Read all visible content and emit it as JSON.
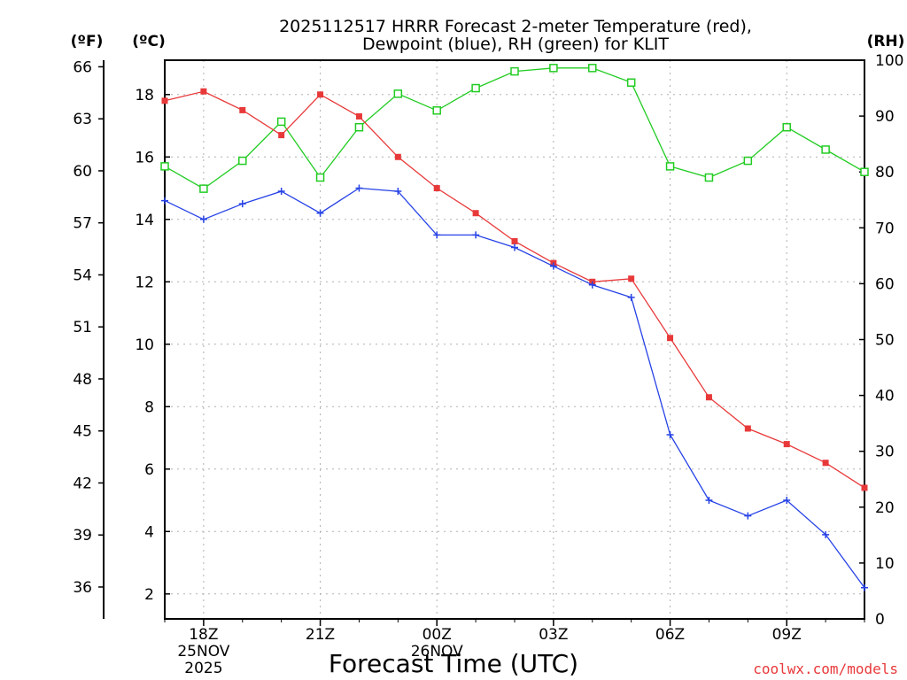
{
  "chart_data": {
    "type": "line",
    "title_line1": "2025112517 HRRR Forecast 2-meter Temperature (red),",
    "title_line2": "Dewpoint (blue), RH (green) for KLIT",
    "xlabel": "Forecast Time (UTC)",
    "credit": "coolwx.com/models",
    "unit_f": "(ºF)",
    "unit_c": "(ºC)",
    "unit_rh": "(RH)",
    "colors": {
      "temperature": "#e8393a",
      "dewpoint": "#2642e6",
      "rh": "#22cc22",
      "grid": "#b0b0b0"
    },
    "x_hours": [
      17,
      18,
      19,
      20,
      21,
      22,
      23,
      24,
      25,
      26,
      27,
      28,
      29,
      30,
      31,
      32,
      33,
      34,
      35
    ],
    "x_ticks": [
      {
        "hour": 18,
        "label": "18Z",
        "date": "25NOV",
        "year": "2025"
      },
      {
        "hour": 21,
        "label": "21Z"
      },
      {
        "hour": 24,
        "label": "00Z",
        "date": "26NOV"
      },
      {
        "hour": 27,
        "label": "03Z"
      },
      {
        "hour": 30,
        "label": "06Z"
      },
      {
        "hour": 33,
        "label": "09Z"
      }
    ],
    "xlim": [
      17,
      35
    ],
    "ylim_c": [
      1.2,
      19.1
    ],
    "ylim_rh": [
      0,
      100
    ],
    "yticks_c": [
      2,
      4,
      6,
      8,
      10,
      12,
      14,
      16,
      18
    ],
    "yticks_f": [
      36,
      39,
      42,
      45,
      48,
      51,
      54,
      57,
      60,
      63,
      66
    ],
    "yticks_rh": [
      0,
      10,
      20,
      30,
      40,
      50,
      60,
      70,
      80,
      90,
      100
    ],
    "series": [
      {
        "name": "Temperature",
        "unit": "C",
        "marker": "filled-square",
        "values": [
          17.8,
          18.1,
          17.5,
          16.7,
          18.0,
          17.3,
          16.0,
          15.0,
          14.2,
          13.3,
          12.6,
          12.0,
          12.1,
          10.2,
          8.3,
          7.3,
          6.8,
          6.2,
          5.4
        ]
      },
      {
        "name": "Dewpoint",
        "unit": "C",
        "marker": "plus",
        "values": [
          14.6,
          14.0,
          14.5,
          14.9,
          14.2,
          15.0,
          14.9,
          13.5,
          13.5,
          13.1,
          12.5,
          11.9,
          11.5,
          7.1,
          5.0,
          4.5,
          5.0,
          3.9,
          2.2
        ]
      },
      {
        "name": "RH",
        "unit": "%",
        "marker": "open-square",
        "values": [
          81,
          77,
          82,
          89,
          79,
          88,
          94,
          91,
          95,
          98,
          98.6,
          98.6,
          96,
          81,
          79,
          82,
          88,
          84,
          80
        ]
      }
    ]
  }
}
